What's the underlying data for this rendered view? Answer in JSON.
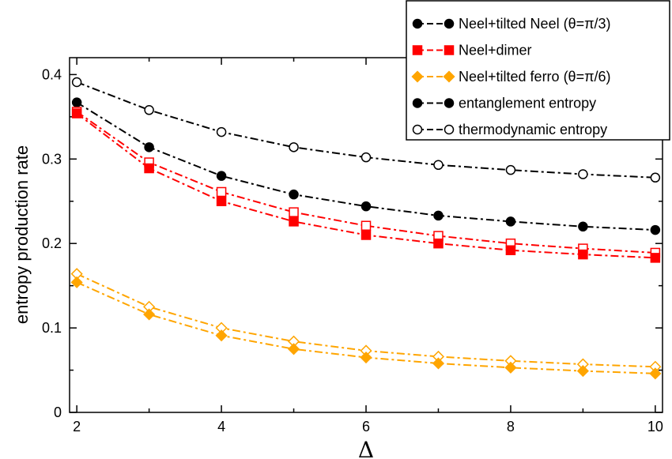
{
  "chart_data": {
    "type": "line",
    "xlabel": "Δ",
    "ylabel": "entropy production rate",
    "xlim": [
      1.9,
      10.1
    ],
    "ylim": [
      0,
      0.42
    ],
    "xticks": [
      2,
      4,
      6,
      8,
      10
    ],
    "yticks": [
      0,
      0.1,
      0.2,
      0.3,
      0.4
    ],
    "x_tick_labels": [
      "2",
      "4",
      "6",
      "8",
      "10"
    ],
    "y_tick_labels": [
      "0",
      "0.1",
      "0.2",
      "0.3",
      "0.4"
    ],
    "grid": false,
    "legend_position": "top-right",
    "x": [
      2,
      3,
      4,
      5,
      6,
      7,
      8,
      9,
      10
    ],
    "series": [
      {
        "name": "thermodynamic entropy",
        "color": "#000000",
        "marker": "circle-open",
        "values": [
          0.391,
          0.358,
          0.332,
          0.314,
          0.302,
          0.293,
          0.287,
          0.282,
          0.278
        ]
      },
      {
        "name": "entanglement entropy",
        "color": "#000000",
        "marker": "circle-filled",
        "values": [
          0.367,
          0.314,
          0.28,
          0.258,
          0.244,
          0.233,
          0.226,
          0.22,
          0.216
        ]
      },
      {
        "name": "",
        "color": "#ff0000",
        "marker": "square-open",
        "values": [
          0.356,
          0.296,
          0.261,
          0.237,
          0.221,
          0.209,
          0.2,
          0.194,
          0.189
        ]
      },
      {
        "name": "Neel+dimer",
        "color": "#ff0000",
        "marker": "square-filled",
        "values": [
          0.354,
          0.289,
          0.25,
          0.226,
          0.21,
          0.2,
          0.192,
          0.187,
          0.183
        ]
      },
      {
        "name": "",
        "color": "#ffa500",
        "marker": "diamond-open",
        "values": [
          0.164,
          0.125,
          0.1,
          0.084,
          0.073,
          0.066,
          0.061,
          0.057,
          0.054
        ]
      },
      {
        "name": "Neel+tilted ferro (θ=π/6)",
        "color": "#ffa500",
        "marker": "diamond-filled",
        "values": [
          0.154,
          0.116,
          0.091,
          0.075,
          0.065,
          0.058,
          0.053,
          0.049,
          0.046
        ]
      }
    ],
    "legend": [
      {
        "label": "Neel+tilted Neel (θ=π/3)",
        "color": "#000000",
        "marker": "circle-filled"
      },
      {
        "label": "Neel+dimer",
        "color": "#ff0000",
        "marker": "square-filled"
      },
      {
        "label": "Neel+tilted ferro (θ=π/6)",
        "color": "#ffa500",
        "marker": "diamond-filled"
      },
      {
        "label": "entanglement entropy",
        "color": "#000000",
        "marker": "circle-filled"
      },
      {
        "label": "thermodynamic entropy",
        "color": "#000000",
        "marker": "circle-open"
      }
    ]
  }
}
